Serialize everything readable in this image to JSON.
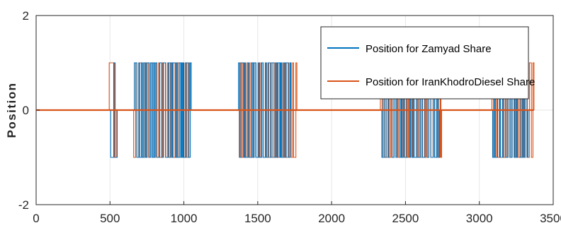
{
  "chart_data": {
    "type": "line",
    "title": "",
    "xlabel": "",
    "ylabel": "Position",
    "xlim": [
      0,
      3500
    ],
    "ylim": [
      -2,
      2
    ],
    "xticks": [
      0,
      500,
      1000,
      1500,
      2000,
      2500,
      3000,
      3500
    ],
    "yticks": [
      -2,
      0,
      2
    ],
    "xtick_labels": [
      "0",
      "500",
      "1000",
      "1500",
      "2000",
      "2500",
      "3000",
      "3500"
    ],
    "ytick_labels": [
      "-2",
      "0",
      "2"
    ],
    "grid": true,
    "legend_position": "top-right",
    "series": [
      {
        "name": "Position for Zamyad Share",
        "color": "#0072BD",
        "segments": [
          {
            "x": [
              0,
              505,
              505,
              525,
              525,
              535,
              535,
              549,
              549,
              1
            ],
            "values": [
              0,
              0,
              -1,
              -1,
              1,
              1,
              -1,
              -1,
              0,
              0
            ]
          },
          {
            "x_start": 665,
            "x_end": 1050,
            "pattern": "oscillating between -1 and 1"
          },
          {
            "x_start": 1370,
            "x_end": 1725,
            "pattern": "oscillating between -1 and 1"
          },
          {
            "x_start": 2340,
            "x_end": 2730,
            "pattern": "oscillating between -1 and 1"
          },
          {
            "x_start": 3090,
            "x_end": 3330,
            "pattern": "oscillating between -1 and 1"
          }
        ]
      },
      {
        "name": "Position for IranKhodroDiesel Share",
        "color": "#D95319",
        "segments": [
          {
            "x_start": 495,
            "x_end": 545,
            "pattern": "1 then -1"
          },
          {
            "x_start": 660,
            "x_end": 1040,
            "pattern": "oscillating between -1 and 1"
          },
          {
            "x_start": 1375,
            "x_end": 1765,
            "pattern": "oscillating between -1 and 1"
          },
          {
            "x_start": 2330,
            "x_end": 2745,
            "pattern": "oscillating between -1 and 1"
          },
          {
            "x_start": 3085,
            "x_end": 3370,
            "pattern": "oscillating between -1 and 1"
          }
        ]
      }
    ]
  },
  "colors": {
    "zamyad": "#0072BD",
    "irankhodro": "#D95319",
    "axis": "#262626",
    "grid": "#e6e6e6"
  }
}
